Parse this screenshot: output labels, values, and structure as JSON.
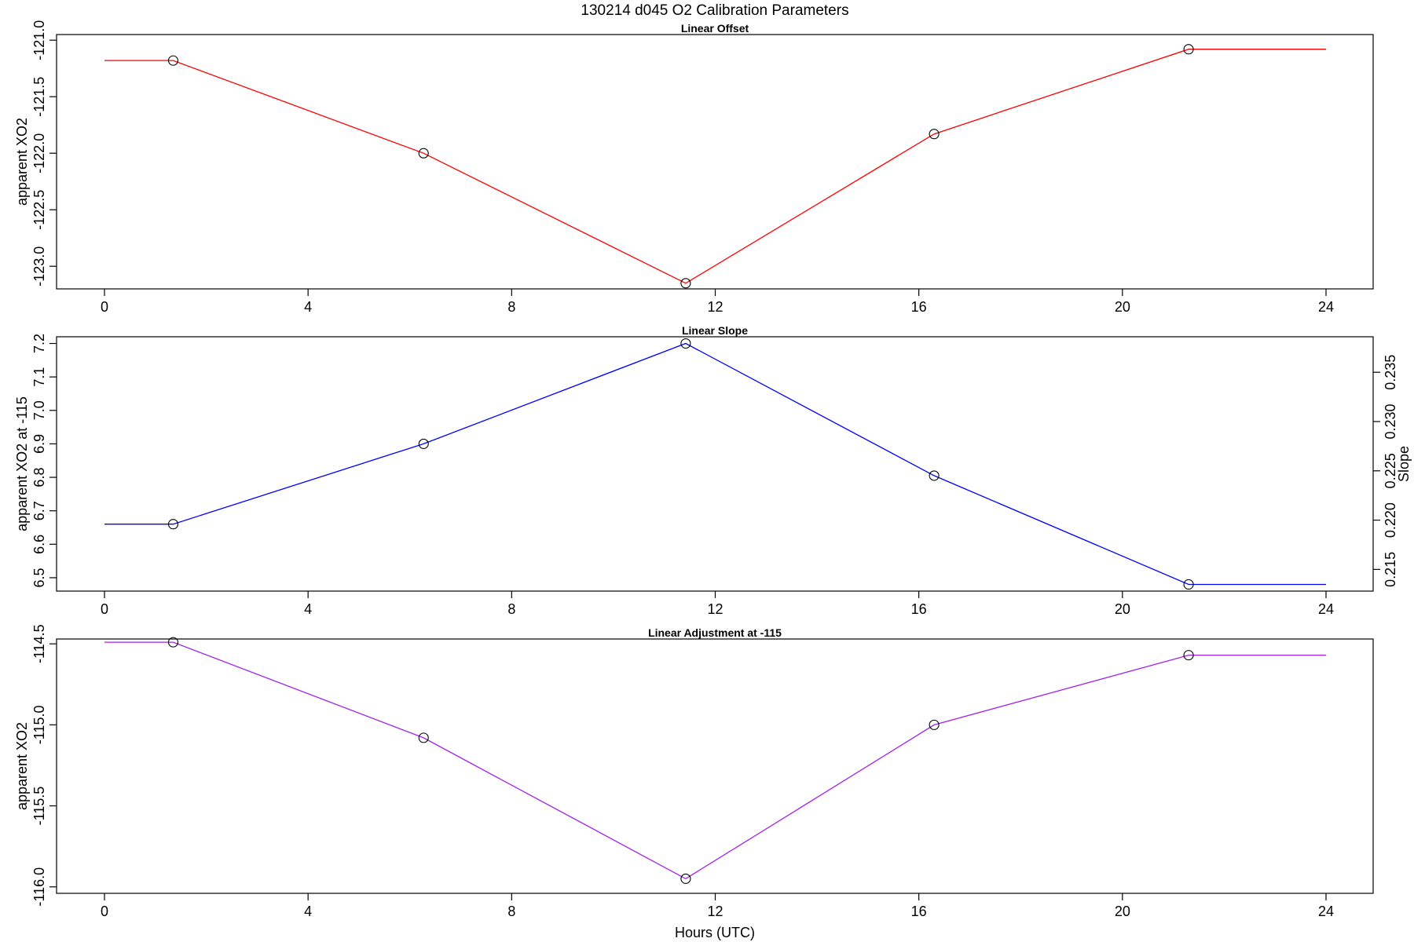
{
  "figure": {
    "title": "130214   d045   O2 Calibration Parameters",
    "xlabel": "Hours (UTC)"
  },
  "chart_data": [
    {
      "type": "line",
      "title": "Linear Offset",
      "ylabel": "apparent XO2",
      "xlim": [
        0,
        24
      ],
      "ylim": [
        -123.2,
        -120.95
      ],
      "xticks": [
        0,
        4,
        8,
        12,
        16,
        20,
        24
      ],
      "yticks": [
        -123.0,
        -122.5,
        -122.0,
        -121.5,
        -121.0
      ],
      "ytick_labels": [
        "-123.0",
        "-122.5",
        "-122.0",
        "-121.5",
        "-121.0"
      ],
      "color": "#ff0000",
      "line_x": [
        0,
        1.35,
        6.27,
        11.42,
        16.3,
        21.3,
        24
      ],
      "line_y": [
        -121.18,
        -121.18,
        -122.0,
        -123.15,
        -121.83,
        -121.08,
        -121.08
      ],
      "points_x": [
        1.35,
        6.27,
        11.42,
        16.3,
        21.3
      ],
      "points_y": [
        -121.18,
        -122.0,
        -123.15,
        -121.83,
        -121.08
      ]
    },
    {
      "type": "line",
      "title": "Linear Slope",
      "ylabel": "apparent XO2 at -115",
      "ylabel_right": "Slope",
      "xlim": [
        0,
        24
      ],
      "ylim": [
        6.46,
        7.22
      ],
      "xticks": [
        0,
        4,
        8,
        12,
        16,
        20,
        24
      ],
      "yticks": [
        6.5,
        6.6,
        6.7,
        6.8,
        6.9,
        7.0,
        7.1,
        7.2
      ],
      "ytick_labels": [
        "6.5",
        "6.6",
        "6.7",
        "6.8",
        "6.9",
        "7.0",
        "7.1",
        "7.2"
      ],
      "y2ticks": [
        0.215,
        0.22,
        0.225,
        0.23,
        0.235
      ],
      "y2tick_labels": [
        "0.215",
        "0.220",
        "0.225",
        "0.230",
        "0.235"
      ],
      "y2lim": [
        0.2128,
        0.2386
      ],
      "color": "#0000ff",
      "line_x": [
        0,
        1.35,
        6.27,
        11.42,
        16.3,
        21.3,
        24
      ],
      "line_y": [
        6.66,
        6.66,
        6.9,
        7.2,
        6.805,
        6.48,
        6.48
      ],
      "points_x": [
        1.35,
        6.27,
        11.42,
        16.3,
        21.3
      ],
      "points_y": [
        6.66,
        6.9,
        7.2,
        6.805,
        6.48
      ]
    },
    {
      "type": "line",
      "title": "Linear Adjustment at -115",
      "ylabel": "apparent XO2",
      "xlim": [
        0,
        24
      ],
      "ylim": [
        -116.04,
        -114.47
      ],
      "xticks": [
        0,
        4,
        8,
        12,
        16,
        20,
        24
      ],
      "yticks": [
        -116.0,
        -115.5,
        -115.0,
        -114.5
      ],
      "ytick_labels": [
        "-116.0",
        "-115.5",
        "-115.0",
        "-114.5"
      ],
      "color": "#a020f0",
      "line_x": [
        0,
        1.35,
        6.27,
        11.42,
        16.3,
        21.3,
        24
      ],
      "line_y": [
        -114.49,
        -114.49,
        -115.08,
        -115.95,
        -115.0,
        -114.57,
        -114.57
      ],
      "points_x": [
        1.35,
        6.27,
        11.42,
        16.3,
        21.3
      ],
      "points_y": [
        -114.49,
        -115.08,
        -115.95,
        -115.0,
        -114.57
      ]
    }
  ]
}
